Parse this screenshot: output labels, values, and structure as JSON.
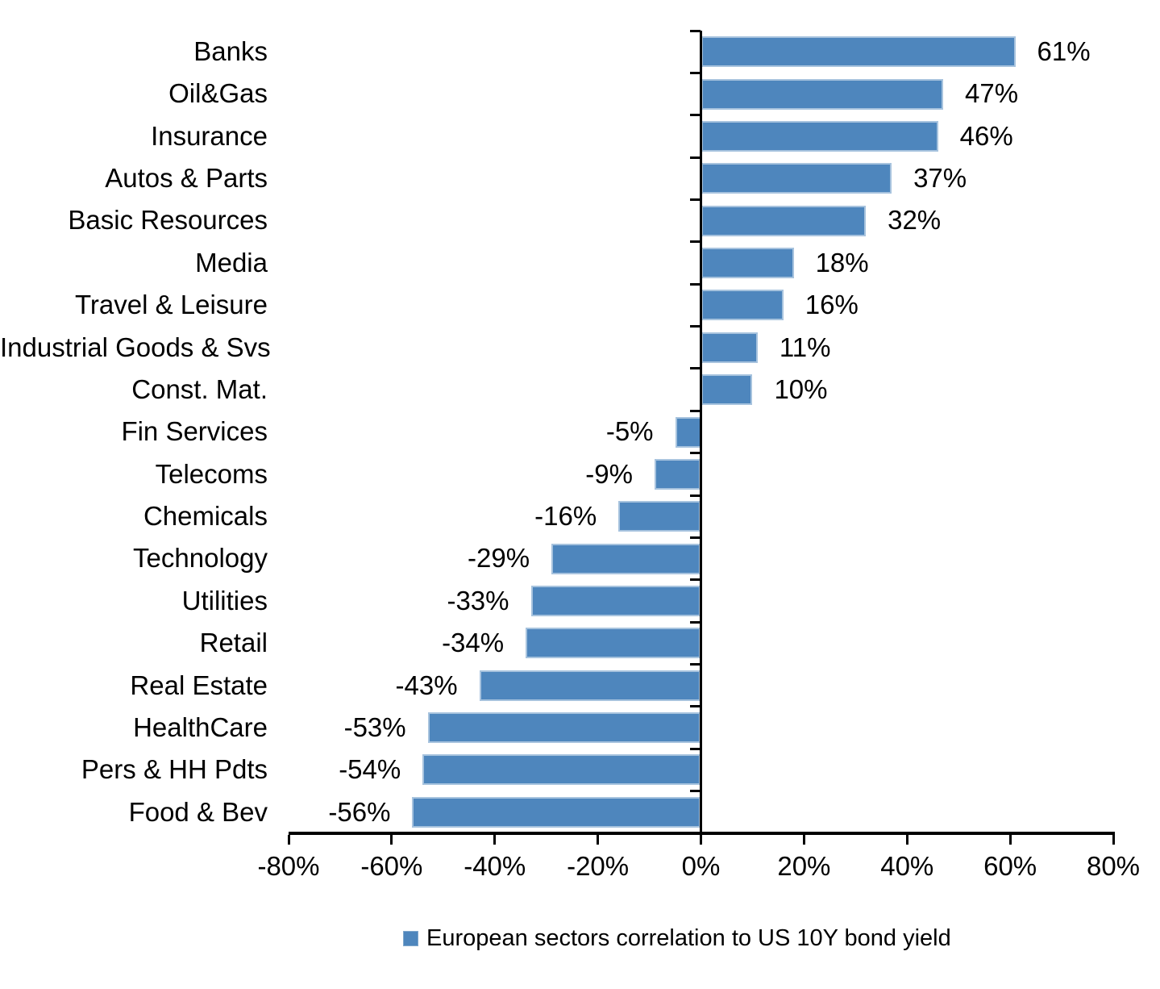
{
  "chart_data": {
    "type": "bar",
    "orientation": "horizontal",
    "title": "",
    "categories": [
      "Banks",
      "Oil&Gas",
      "Insurance",
      "Autos & Parts",
      "Basic Resources",
      "Media",
      "Travel & Leisure",
      "Industrial Goods & Svs",
      "Const. Mat.",
      "Fin Services",
      "Telecoms",
      "Chemicals",
      "Technology",
      "Utilities",
      "Retail",
      "Real Estate",
      "HealthCare",
      "Pers & HH Pdts",
      "Food & Bev"
    ],
    "values": [
      61,
      47,
      46,
      37,
      32,
      18,
      16,
      11,
      10,
      -5,
      -9,
      -16,
      -29,
      -33,
      -34,
      -43,
      -53,
      -54,
      -56
    ],
    "value_labels": [
      "61%",
      "47%",
      "46%",
      "37%",
      "32%",
      "18%",
      "16%",
      "11%",
      "10%",
      "-5%",
      "-9%",
      "-16%",
      "-29%",
      "-33%",
      "-34%",
      "-43%",
      "-53%",
      "-54%",
      "-56%"
    ],
    "xlabel": "",
    "ylabel": "",
    "xlim": [
      -80,
      80
    ],
    "x_tick_values": [
      -80,
      -60,
      -40,
      -20,
      0,
      20,
      40,
      60,
      80
    ],
    "x_tick_labels": [
      "-80%",
      "-60%",
      "-40%",
      "-20%",
      "0%",
      "20%",
      "40%",
      "60%",
      "80%"
    ],
    "grid": false,
    "legend": {
      "position": "bottom",
      "label": "European sectors correlation to US 10Y bond yield"
    },
    "colors": {
      "bar_fill": "#4E86BD",
      "bar_edge": "#A7C3DE",
      "axis": "#000000",
      "text": "#000000",
      "background": "#FFFFFF"
    }
  }
}
